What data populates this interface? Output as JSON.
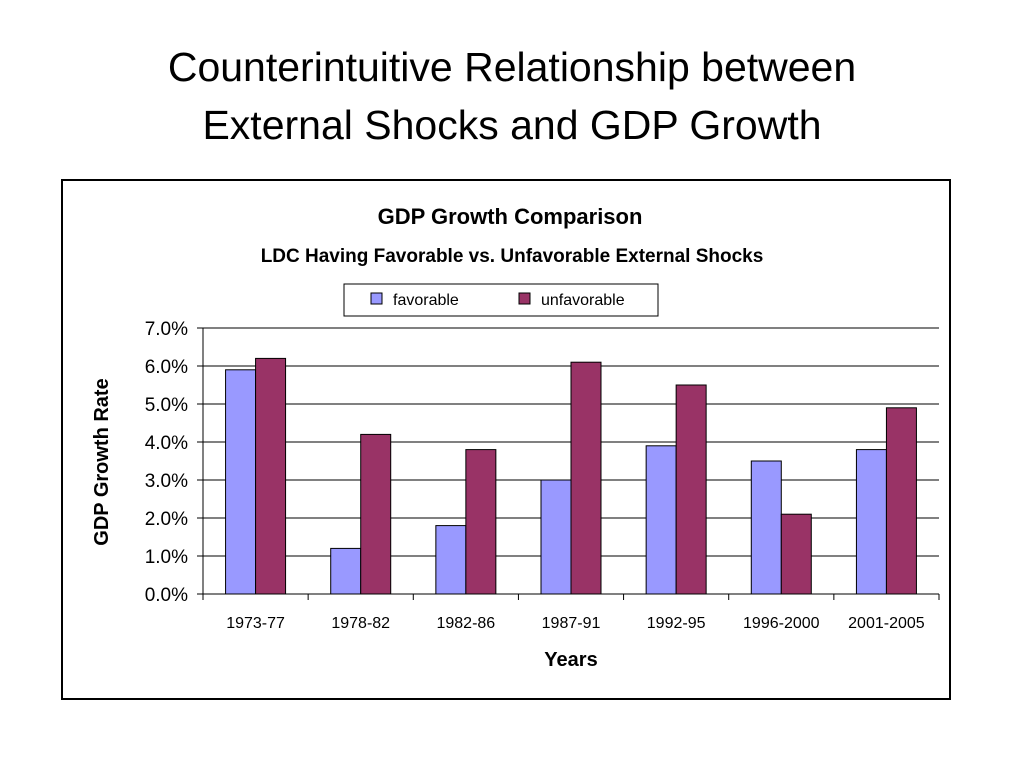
{
  "slide": {
    "title_line1": "Counterintuitive Relationship between",
    "title_line2": "External Shocks and GDP Growth"
  },
  "chart_data": {
    "type": "bar",
    "title": "GDP Growth Comparison",
    "subtitle": "LDC Having Favorable vs. Unfavorable External Shocks",
    "xlabel": "Years",
    "ylabel": "GDP Growth Rate",
    "categories": [
      "1973-77",
      "1978-82",
      "1982-86",
      "1987-91",
      "1992-95",
      "1996-2000",
      "2001-2005"
    ],
    "series": [
      {
        "name": "favorable",
        "color": "#9999FF",
        "values": [
          5.9,
          1.2,
          1.8,
          3.0,
          3.9,
          3.5,
          3.8
        ]
      },
      {
        "name": "unfavorable",
        "color": "#993366",
        "values": [
          6.2,
          4.2,
          3.8,
          6.1,
          5.5,
          2.1,
          4.9
        ]
      }
    ],
    "ylim": [
      0,
      7
    ],
    "yticks": [
      "0.0%",
      "1.0%",
      "2.0%",
      "3.0%",
      "4.0%",
      "5.0%",
      "6.0%",
      "7.0%"
    ],
    "grid": true,
    "legend_position": "top-center"
  }
}
